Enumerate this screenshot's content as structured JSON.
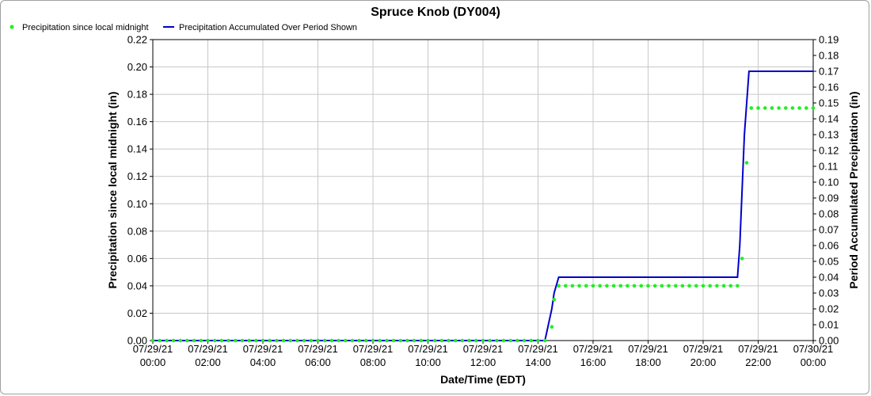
{
  "chart_data": {
    "type": "line",
    "title": "Spruce Knob (DY004)",
    "xlabel": "Date/Time (EDT)",
    "ylabel_left": "Precipitation since local midnight (in)",
    "ylabel_right": "Period Accumulated Precipitation (in)",
    "xlim": [
      "07/29/21 00:00",
      "07/30/21 00:00"
    ],
    "ylim_left": [
      0,
      0.22
    ],
    "ylim_right": [
      0,
      0.19
    ],
    "grid": true,
    "legend_position": "top-left",
    "x_ticks": [
      {
        "date": "07/29/21",
        "time": "00:00"
      },
      {
        "date": "07/29/21",
        "time": "02:00"
      },
      {
        "date": "07/29/21",
        "time": "04:00"
      },
      {
        "date": "07/29/21",
        "time": "06:00"
      },
      {
        "date": "07/29/21",
        "time": "08:00"
      },
      {
        "date": "07/29/21",
        "time": "10:00"
      },
      {
        "date": "07/29/21",
        "time": "12:00"
      },
      {
        "date": "07/29/21",
        "time": "14:00"
      },
      {
        "date": "07/29/21",
        "time": "16:00"
      },
      {
        "date": "07/29/21",
        "time": "18:00"
      },
      {
        "date": "07/29/21",
        "time": "20:00"
      },
      {
        "date": "07/29/21",
        "time": "22:00"
      },
      {
        "date": "07/30/21",
        "time": "00:00"
      }
    ],
    "y_ticks_left": [
      "0.00",
      "0.02",
      "0.04",
      "0.06",
      "0.08",
      "0.10",
      "0.12",
      "0.14",
      "0.16",
      "0.18",
      "0.20",
      "0.22"
    ],
    "y_ticks_right": [
      "0.00",
      "0.01",
      "0.02",
      "0.03",
      "0.04",
      "0.05",
      "0.06",
      "0.07",
      "0.08",
      "0.09",
      "0.10",
      "0.11",
      "0.12",
      "0.13",
      "0.14",
      "0.15",
      "0.16",
      "0.17",
      "0.18",
      "0.19"
    ],
    "series": [
      {
        "name": "Precipitation since local midnight",
        "style": "dots",
        "color": "#22ee22",
        "axis": "left",
        "segments": [
          {
            "start": "07/29/21 00:00",
            "end": "07/29/21 14:15",
            "step_minutes": 15,
            "value": 0.0
          },
          {
            "start": "07/29/21 14:45",
            "end": "07/29/21 21:15",
            "step_minutes": 15,
            "value": 0.04
          },
          {
            "start": "07/29/21 21:45",
            "end": "07/30/21 00:00",
            "step_minutes": 15,
            "value": 0.17
          }
        ],
        "points": [
          {
            "x": "07/29/21 14:30",
            "y": 0.01
          },
          {
            "x": "07/29/21 14:35",
            "y": 0.03
          },
          {
            "x": "07/29/21 21:25",
            "y": 0.06
          },
          {
            "x": "07/29/21 21:35",
            "y": 0.13
          }
        ]
      },
      {
        "name": "Precipitation Accumulated Over Period Shown",
        "style": "line",
        "color": "#0000cc",
        "axis": "right",
        "points": [
          {
            "x": "07/29/21 00:00",
            "y": 0.0
          },
          {
            "x": "07/29/21 14:15",
            "y": 0.0
          },
          {
            "x": "07/29/21 14:30",
            "y": 0.02
          },
          {
            "x": "07/29/21 14:35",
            "y": 0.03
          },
          {
            "x": "07/29/21 14:45",
            "y": 0.04
          },
          {
            "x": "07/29/21 21:15",
            "y": 0.04
          },
          {
            "x": "07/29/21 21:20",
            "y": 0.06
          },
          {
            "x": "07/29/21 21:30",
            "y": 0.13
          },
          {
            "x": "07/29/21 21:40",
            "y": 0.17
          },
          {
            "x": "07/30/21 00:00",
            "y": 0.17
          }
        ]
      }
    ]
  }
}
